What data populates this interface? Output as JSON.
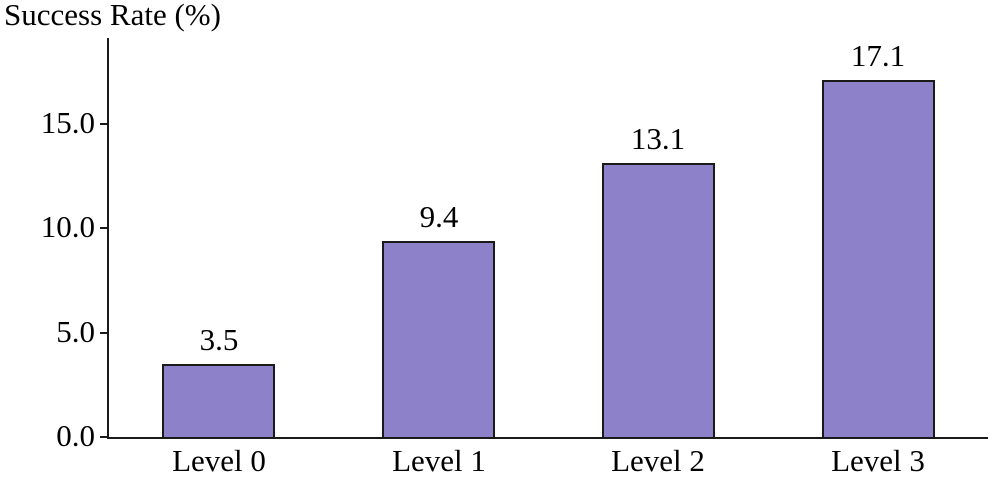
{
  "chart_data": {
    "type": "bar",
    "title": "Success Rate (%)",
    "categories": [
      "Level 0",
      "Level 1",
      "Level 2",
      "Level 3"
    ],
    "values": [
      3.5,
      9.4,
      13.1,
      17.1
    ],
    "value_labels": [
      "3.5",
      "9.4",
      "13.1",
      "17.1"
    ],
    "ylabel": "Success Rate (%)",
    "xlabel": "",
    "ylim": [
      0,
      19.1
    ],
    "yticks": [
      {
        "value": 0,
        "label": "0.0"
      },
      {
        "value": 5,
        "label": "5.0"
      },
      {
        "value": 10,
        "label": "10.0"
      },
      {
        "value": 15,
        "label": "15.0"
      }
    ],
    "grid": false,
    "legend": null,
    "colors": {
      "bar_fill": "#8d82c9",
      "bar_edge": "#1a1a1a",
      "axis": "#1a1a1a",
      "text": "#000000",
      "background": "#ffffff"
    }
  }
}
